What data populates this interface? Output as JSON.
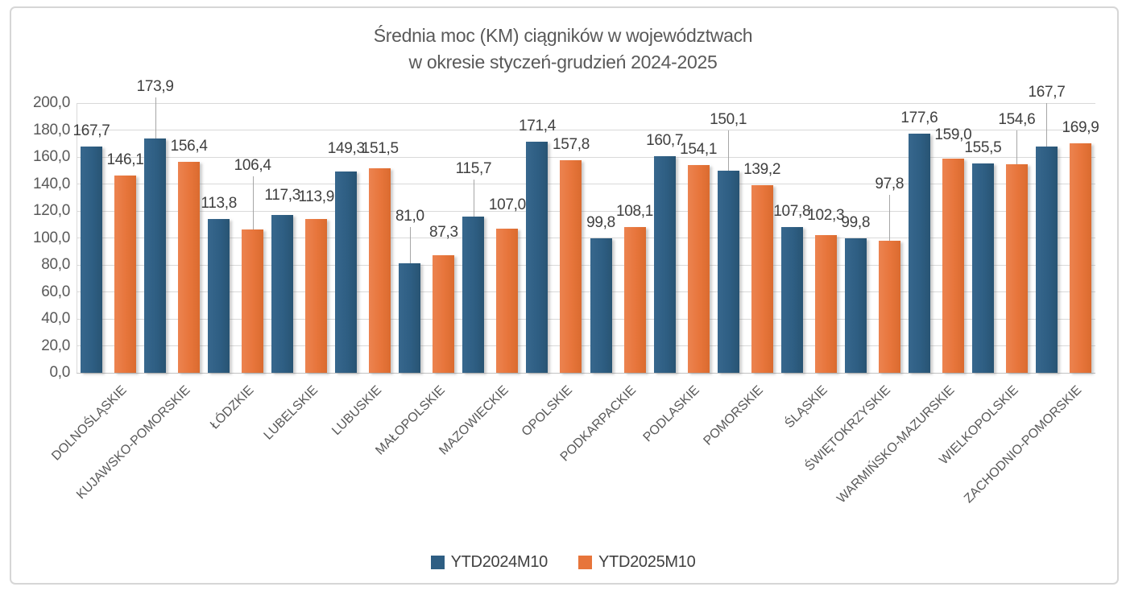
{
  "title": {
    "line1": "Średnia moc (KM) ciągników w województwach",
    "line2": "w okresie styczeń-grudzień  2024-2025"
  },
  "legend": {
    "position": "bottom",
    "items": [
      {
        "label": "YTD2024M10",
        "color": "#2e5e83"
      },
      {
        "label": "YTD2025M10",
        "color": "#e7753b"
      }
    ]
  },
  "colors": {
    "series_blue": "#2e5e83",
    "series_orange": "#e7753b",
    "gridline": "#d9d9d9",
    "axis_text": "#595959",
    "value_label_text": "#404040",
    "border": "#d6d6d6"
  },
  "chart_data": {
    "type": "bar",
    "title": "Średnia moc (KM) ciągników w województwach w okresie styczeń-grudzień 2024-2025",
    "xlabel": "",
    "ylabel": "",
    "ylim": [
      0,
      200
    ],
    "ytick_step": 20,
    "ytick_labels": [
      "0,0",
      "20,0",
      "40,0",
      "60,0",
      "80,0",
      "100,0",
      "120,0",
      "140,0",
      "160,0",
      "180,0",
      "200,0"
    ],
    "grid": true,
    "legend_position": "bottom",
    "decimal_separator": ",",
    "categories": [
      "DOLNOŚLĄSKIE",
      "KUJAWSKO-POMORSKIE",
      "ŁÓDZKIE",
      "LUBELSKIE",
      "LUBUSKIE",
      "MAŁOPOLSKIE",
      "MAZOWIECKIE",
      "OPOLSKIE",
      "PODKARPACKIE",
      "PODLASKIE",
      "POMORSKIE",
      "ŚLĄSKIE",
      "ŚWIĘTOKRZYSKIE",
      "WARMIŃSKO-MAZURSKIE",
      "WIELKOPOLSKIE",
      "ZACHODNIO-POMORSKIE"
    ],
    "series": [
      {
        "name": "YTD2024M10",
        "color": "#2e5e83",
        "values": [
          167.7,
          173.9,
          113.8,
          117.3,
          149.3,
          81.0,
          115.7,
          171.4,
          99.8,
          160.7,
          150.1,
          107.8,
          99.8,
          177.6,
          155.5,
          167.7
        ]
      },
      {
        "name": "YTD2025M10",
        "color": "#e7753b",
        "values": [
          146.1,
          156.4,
          106.4,
          113.9,
          151.5,
          87.3,
          107.0,
          157.8,
          108.1,
          154.1,
          139.2,
          102.3,
          97.8,
          159.0,
          154.6,
          169.9
        ]
      }
    ],
    "label_lifts": [
      [
        0,
        45,
        0,
        5,
        9,
        39,
        40,
        0,
        0,
        0,
        44,
        0,
        0,
        0,
        0,
        48
      ],
      [
        0,
        0,
        60,
        8,
        5,
        9,
        10,
        0,
        0,
        0,
        0,
        5,
        51,
        10,
        36,
        0
      ]
    ],
    "leader_lines": [
      [
        false,
        true,
        false,
        false,
        false,
        true,
        true,
        false,
        false,
        false,
        true,
        false,
        false,
        false,
        false,
        true
      ],
      [
        false,
        false,
        true,
        false,
        false,
        false,
        false,
        false,
        false,
        false,
        false,
        false,
        true,
        false,
        true,
        false
      ]
    ]
  }
}
